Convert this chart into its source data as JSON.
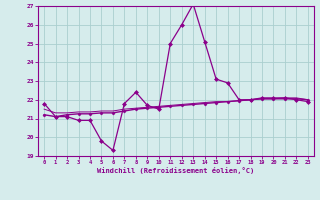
{
  "x": [
    0,
    1,
    2,
    3,
    4,
    5,
    6,
    7,
    8,
    9,
    10,
    11,
    12,
    13,
    14,
    15,
    16,
    17,
    18,
    19,
    20,
    21,
    22,
    23
  ],
  "line1": [
    21.8,
    21.1,
    21.1,
    20.9,
    20.9,
    19.8,
    19.3,
    21.8,
    22.4,
    21.7,
    21.5,
    25.0,
    26.0,
    27.1,
    25.1,
    23.1,
    22.9,
    22.0,
    22.0,
    22.1,
    22.1,
    22.1,
    22.0,
    21.9
  ],
  "line2": [
    21.2,
    21.1,
    21.2,
    21.25,
    21.25,
    21.3,
    21.3,
    21.4,
    21.5,
    21.55,
    21.6,
    21.65,
    21.7,
    21.75,
    21.8,
    21.85,
    21.9,
    21.95,
    22.0,
    22.05,
    22.05,
    22.05,
    22.05,
    22.0
  ],
  "line3": [
    21.5,
    21.3,
    21.3,
    21.35,
    21.35,
    21.4,
    21.4,
    21.5,
    21.55,
    21.6,
    21.65,
    21.7,
    21.75,
    21.8,
    21.85,
    21.9,
    21.9,
    21.95,
    22.0,
    22.05,
    22.05,
    22.1,
    22.1,
    22.0
  ],
  "line_color": "#8b008b",
  "bg_color": "#d6ecec",
  "grid_color": "#aacfcf",
  "xlabel": "Windchill (Refroidissement éolien,°C)",
  "ylim": [
    19,
    27
  ],
  "xlim": [
    -0.5,
    23.5
  ],
  "yticks": [
    19,
    20,
    21,
    22,
    23,
    24,
    25,
    26,
    27
  ],
  "xticks": [
    0,
    1,
    2,
    3,
    4,
    5,
    6,
    7,
    8,
    9,
    10,
    11,
    12,
    13,
    14,
    15,
    16,
    17,
    18,
    19,
    20,
    21,
    22,
    23
  ]
}
